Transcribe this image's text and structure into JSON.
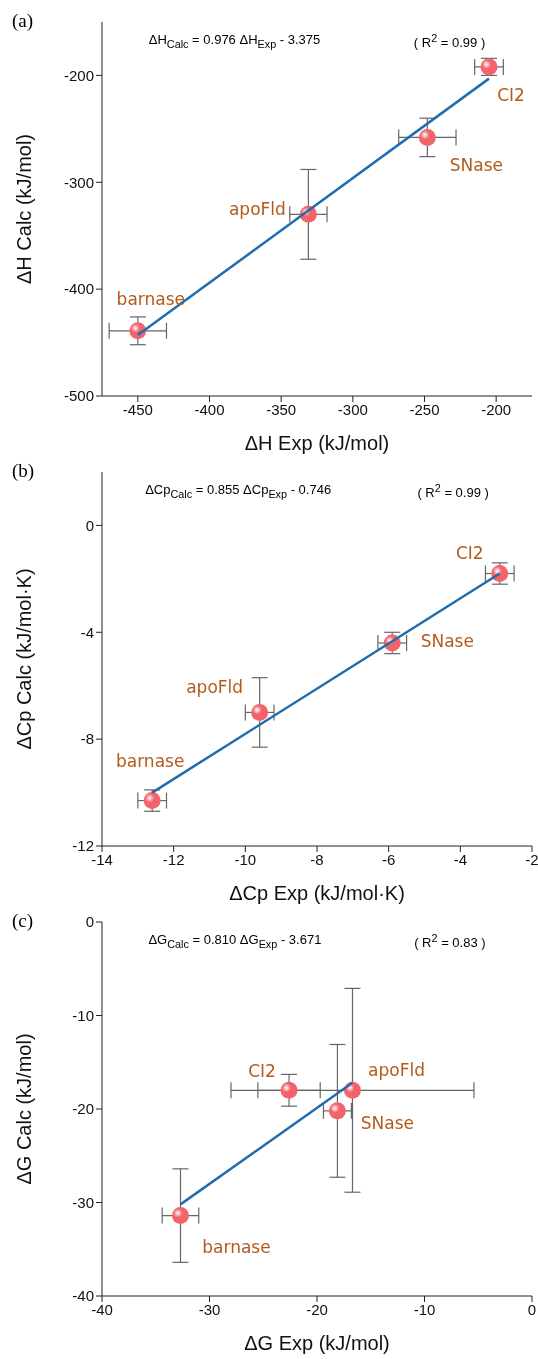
{
  "chart_data": [
    {
      "type": "scatter",
      "title": "(a)",
      "xlabel": "ΔH Exp (kJ/mol)",
      "ylabel": "ΔH Calc (kJ/mol)",
      "xlim": [
        -475,
        -175
      ],
      "ylim": [
        -500,
        -150
      ],
      "xticks": [
        -450,
        -400,
        -350,
        -300,
        -250,
        -200
      ],
      "yticks": [
        -500,
        -400,
        -300,
        -200
      ],
      "series": [
        {
          "marker": "circle",
          "color": "#f2636b",
          "x": [
            -450,
            -331,
            -248,
            -205
          ],
          "values": [
            -439,
            -330,
            -258,
            -192
          ],
          "errors": [
            13,
            42,
            18,
            8
          ],
          "xerrors": [
            20,
            13,
            20,
            10
          ]
        },
        {
          "type": "line",
          "marker": "none",
          "color": "#1f6cb0",
          "x": [
            -450,
            -205
          ],
          "values": [
            -443,
            -203
          ]
        }
      ],
      "annotations": [
        "ΔH$_{Calc}$ = 0.976 ΔH$_{Exp}$ - 3.375",
        "( R$^{2}$ = 0.99 )",
        {
          "text": "barnase",
          "x": -450,
          "y": -439
        },
        {
          "text": "apoFld",
          "x": -331,
          "y": -330
        },
        {
          "text": "SNase",
          "x": -248,
          "y": -258
        },
        {
          "text": "CI2",
          "x": -205,
          "y": -192
        }
      ]
    },
    {
      "type": "scatter",
      "title": "(b)",
      "xlabel": "ΔCp Exp (kJ/mol·K)",
      "ylabel": "ΔCp Calc (kJ/mol·K)",
      "xlim": [
        -14,
        -2
      ],
      "ylim": [
        -12,
        2
      ],
      "xticks": [
        -14,
        -12,
        -10,
        -8,
        -6,
        -4,
        -2
      ],
      "yticks": [
        -12,
        -8,
        -4,
        0
      ],
      "series": [
        {
          "marker": "circle",
          "color": "#f2636b",
          "x": [
            -12.6,
            -9.6,
            -5.9,
            -2.9
          ],
          "values": [
            -10.3,
            -7.0,
            -4.4,
            -1.8
          ],
          "errors": [
            0.4,
            1.3,
            0.4,
            0.4
          ],
          "xerrors": [
            0.4,
            0.4,
            0.4,
            0.4
          ]
        },
        {
          "type": "line",
          "marker": "none",
          "color": "#1f6cb0",
          "x": [
            -12.6,
            -2.9
          ],
          "values": [
            -10.0,
            -1.8
          ]
        }
      ],
      "annotations": [
        "ΔCp$_{Calc}$ = 0.855 ΔCp$_{Exp}$ - 0.746",
        "( R$^{2}$ = 0.99 )",
        {
          "text": "barnase",
          "x": -12.6,
          "y": -10.3
        },
        {
          "text": "apoFld",
          "x": -9.6,
          "y": -7.0
        },
        {
          "text": "SNase",
          "x": -5.9,
          "y": -4.4
        },
        {
          "text": "CI2",
          "x": -2.9,
          "y": -1.8
        }
      ]
    },
    {
      "type": "scatter",
      "title": "(c)",
      "xlabel": "ΔG Exp (kJ/mol)",
      "ylabel": "ΔG Calc (kJ/mol)",
      "xlim": [
        -40,
        0
      ],
      "ylim": [
        -40,
        0
      ],
      "xticks": [
        -40,
        -30,
        -20,
        -10,
        0
      ],
      "yticks": [
        -40,
        -30,
        -20,
        -10,
        0
      ],
      "series": [
        {
          "marker": "circle",
          "color": "#f2636b",
          "x": [
            -32.7,
            -22.6,
            -18.1,
            -16.7
          ],
          "values": [
            -31.4,
            -18.0,
            -20.2,
            -18.0
          ],
          "errors": [
            5,
            1.7,
            7.1,
            10.9
          ],
          "xerrors": [
            1.7,
            2.9,
            1.3,
            11.3
          ]
        },
        {
          "type": "line",
          "marker": "none",
          "color": "#1f6cb0",
          "x": [
            -32.7,
            -16.7
          ],
          "values": [
            -30.2,
            -17.2
          ]
        }
      ],
      "annotations": [
        "ΔG$_{Calc}$ = 0.810 ΔG$_{Exp}$ - 3.671",
        "( R$^{2}$ = 0.83 )",
        {
          "text": "barnase",
          "x": -32.7,
          "y": -31.4
        },
        {
          "text": "CI2",
          "x": -22.6,
          "y": -18.0
        },
        {
          "text": "apoFld",
          "x": -16.7,
          "y": -18.0
        },
        {
          "text": "SNase",
          "x": -18.1,
          "y": -20.2
        }
      ]
    }
  ]
}
